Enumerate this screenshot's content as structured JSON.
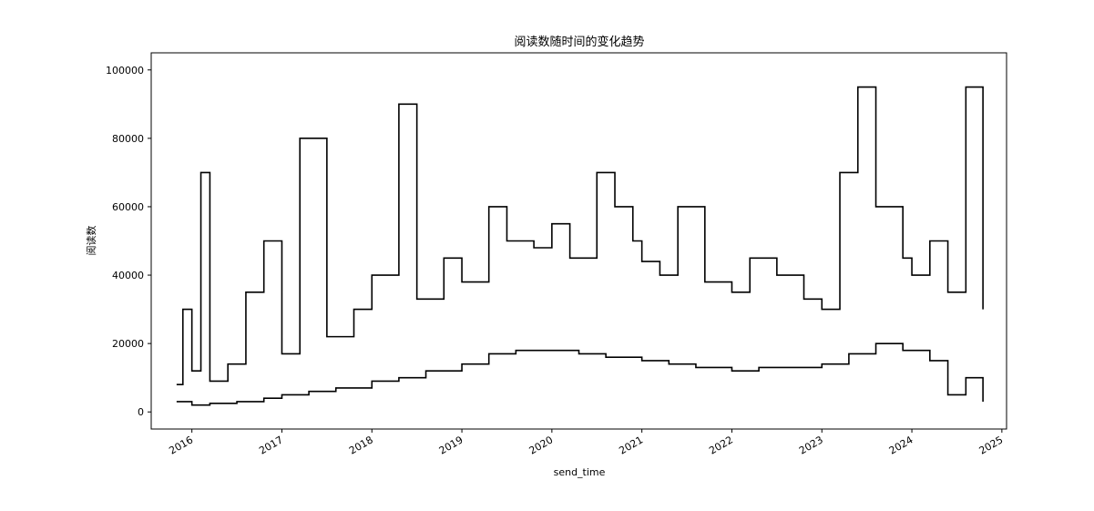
{
  "chart_data": {
    "type": "line",
    "title": "阅读数随时间的变化趋势",
    "xlabel": "send_time",
    "ylabel": "阅读数",
    "x_ticks": [
      "2016",
      "2017",
      "2018",
      "2019",
      "2020",
      "2021",
      "2022",
      "2023",
      "2024",
      "2025"
    ],
    "y_ticks": [
      "0",
      "20000",
      "40000",
      "60000",
      "80000",
      "100000"
    ],
    "xlim": [
      "2015-07-20",
      "2025-01-20"
    ],
    "ylim": [
      -5000,
      105000
    ],
    "x_range": [
      "2015-11-01",
      "2024-10-15"
    ],
    "grid": false,
    "line_color": "#000000",
    "series": [
      {
        "values": [
          [
            2015.83,
            8000
          ],
          [
            2015.9,
            30000
          ],
          [
            2016.0,
            12000
          ],
          [
            2016.1,
            70000
          ],
          [
            2016.2,
            9000
          ],
          [
            2016.4,
            14000
          ],
          [
            2016.6,
            35000
          ],
          [
            2016.8,
            50000
          ],
          [
            2017.0,
            17000
          ],
          [
            2017.2,
            80000
          ],
          [
            2017.5,
            22000
          ],
          [
            2017.8,
            30000
          ],
          [
            2018.0,
            40000
          ],
          [
            2018.3,
            90000
          ],
          [
            2018.5,
            33000
          ],
          [
            2018.8,
            45000
          ],
          [
            2019.0,
            38000
          ],
          [
            2019.3,
            60000
          ],
          [
            2019.5,
            50000
          ],
          [
            2019.8,
            48000
          ],
          [
            2020.0,
            55000
          ],
          [
            2020.2,
            45000
          ],
          [
            2020.5,
            70000
          ],
          [
            2020.7,
            60000
          ],
          [
            2020.9,
            50000
          ],
          [
            2021.0,
            44000
          ],
          [
            2021.2,
            40000
          ],
          [
            2021.4,
            60000
          ],
          [
            2021.7,
            38000
          ],
          [
            2022.0,
            35000
          ],
          [
            2022.2,
            45000
          ],
          [
            2022.5,
            40000
          ],
          [
            2022.8,
            33000
          ],
          [
            2023.0,
            30000
          ],
          [
            2023.2,
            70000
          ],
          [
            2023.4,
            95000
          ],
          [
            2023.6,
            60000
          ],
          [
            2023.9,
            45000
          ],
          [
            2024.0,
            40000
          ],
          [
            2024.2,
            50000
          ],
          [
            2024.4,
            35000
          ],
          [
            2024.6,
            95000
          ],
          [
            2024.79,
            30000
          ]
        ]
      },
      {
        "values": [
          [
            2015.83,
            3000
          ],
          [
            2016.0,
            2000
          ],
          [
            2016.2,
            2500
          ],
          [
            2016.5,
            3000
          ],
          [
            2016.8,
            4000
          ],
          [
            2017.0,
            5000
          ],
          [
            2017.3,
            6000
          ],
          [
            2017.6,
            7000
          ],
          [
            2018.0,
            9000
          ],
          [
            2018.3,
            10000
          ],
          [
            2018.6,
            12000
          ],
          [
            2019.0,
            14000
          ],
          [
            2019.3,
            17000
          ],
          [
            2019.6,
            18000
          ],
          [
            2020.0,
            18000
          ],
          [
            2020.3,
            17000
          ],
          [
            2020.6,
            16000
          ],
          [
            2021.0,
            15000
          ],
          [
            2021.3,
            14000
          ],
          [
            2021.6,
            13000
          ],
          [
            2022.0,
            12000
          ],
          [
            2022.3,
            13000
          ],
          [
            2022.6,
            13000
          ],
          [
            2023.0,
            14000
          ],
          [
            2023.3,
            17000
          ],
          [
            2023.6,
            20000
          ],
          [
            2023.9,
            18000
          ],
          [
            2024.2,
            15000
          ],
          [
            2024.4,
            5000
          ],
          [
            2024.6,
            10000
          ],
          [
            2024.79,
            3000
          ]
        ]
      }
    ]
  }
}
